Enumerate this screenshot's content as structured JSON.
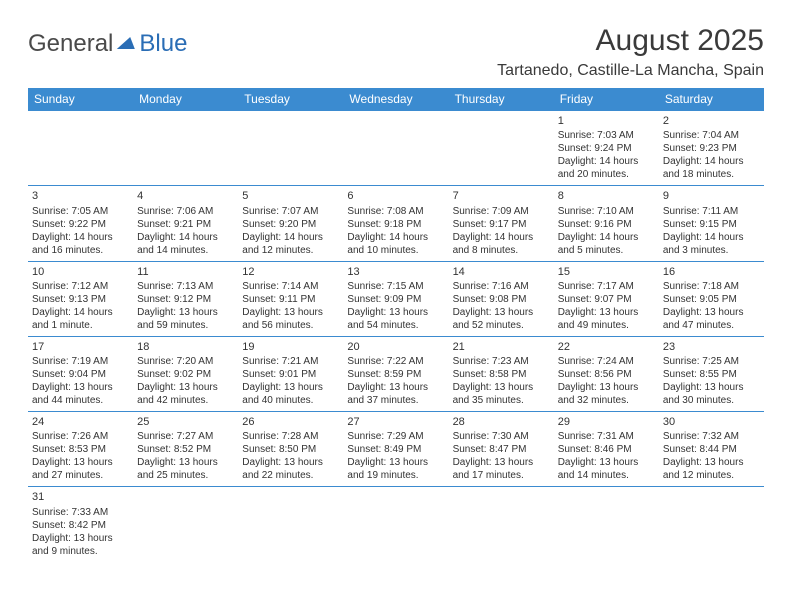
{
  "logo": {
    "general": "General",
    "blue": "Blue"
  },
  "title": "August 2025",
  "location": "Tartanedo, Castille-La Mancha, Spain",
  "headers": [
    "Sunday",
    "Monday",
    "Tuesday",
    "Wednesday",
    "Thursday",
    "Friday",
    "Saturday"
  ],
  "colors": {
    "header_bg": "#3b8bd0",
    "header_fg": "#ffffff",
    "brand_blue": "#2a6db5",
    "text": "#333333",
    "rule": "#3b8bd0"
  },
  "weeks": [
    [
      null,
      null,
      null,
      null,
      null,
      {
        "n": "1",
        "sr": "Sunrise: 7:03 AM",
        "ss": "Sunset: 9:24 PM",
        "d1": "Daylight: 14 hours",
        "d2": "and 20 minutes."
      },
      {
        "n": "2",
        "sr": "Sunrise: 7:04 AM",
        "ss": "Sunset: 9:23 PM",
        "d1": "Daylight: 14 hours",
        "d2": "and 18 minutes."
      }
    ],
    [
      {
        "n": "3",
        "sr": "Sunrise: 7:05 AM",
        "ss": "Sunset: 9:22 PM",
        "d1": "Daylight: 14 hours",
        "d2": "and 16 minutes."
      },
      {
        "n": "4",
        "sr": "Sunrise: 7:06 AM",
        "ss": "Sunset: 9:21 PM",
        "d1": "Daylight: 14 hours",
        "d2": "and 14 minutes."
      },
      {
        "n": "5",
        "sr": "Sunrise: 7:07 AM",
        "ss": "Sunset: 9:20 PM",
        "d1": "Daylight: 14 hours",
        "d2": "and 12 minutes."
      },
      {
        "n": "6",
        "sr": "Sunrise: 7:08 AM",
        "ss": "Sunset: 9:18 PM",
        "d1": "Daylight: 14 hours",
        "d2": "and 10 minutes."
      },
      {
        "n": "7",
        "sr": "Sunrise: 7:09 AM",
        "ss": "Sunset: 9:17 PM",
        "d1": "Daylight: 14 hours",
        "d2": "and 8 minutes."
      },
      {
        "n": "8",
        "sr": "Sunrise: 7:10 AM",
        "ss": "Sunset: 9:16 PM",
        "d1": "Daylight: 14 hours",
        "d2": "and 5 minutes."
      },
      {
        "n": "9",
        "sr": "Sunrise: 7:11 AM",
        "ss": "Sunset: 9:15 PM",
        "d1": "Daylight: 14 hours",
        "d2": "and 3 minutes."
      }
    ],
    [
      {
        "n": "10",
        "sr": "Sunrise: 7:12 AM",
        "ss": "Sunset: 9:13 PM",
        "d1": "Daylight: 14 hours",
        "d2": "and 1 minute."
      },
      {
        "n": "11",
        "sr": "Sunrise: 7:13 AM",
        "ss": "Sunset: 9:12 PM",
        "d1": "Daylight: 13 hours",
        "d2": "and 59 minutes."
      },
      {
        "n": "12",
        "sr": "Sunrise: 7:14 AM",
        "ss": "Sunset: 9:11 PM",
        "d1": "Daylight: 13 hours",
        "d2": "and 56 minutes."
      },
      {
        "n": "13",
        "sr": "Sunrise: 7:15 AM",
        "ss": "Sunset: 9:09 PM",
        "d1": "Daylight: 13 hours",
        "d2": "and 54 minutes."
      },
      {
        "n": "14",
        "sr": "Sunrise: 7:16 AM",
        "ss": "Sunset: 9:08 PM",
        "d1": "Daylight: 13 hours",
        "d2": "and 52 minutes."
      },
      {
        "n": "15",
        "sr": "Sunrise: 7:17 AM",
        "ss": "Sunset: 9:07 PM",
        "d1": "Daylight: 13 hours",
        "d2": "and 49 minutes."
      },
      {
        "n": "16",
        "sr": "Sunrise: 7:18 AM",
        "ss": "Sunset: 9:05 PM",
        "d1": "Daylight: 13 hours",
        "d2": "and 47 minutes."
      }
    ],
    [
      {
        "n": "17",
        "sr": "Sunrise: 7:19 AM",
        "ss": "Sunset: 9:04 PM",
        "d1": "Daylight: 13 hours",
        "d2": "and 44 minutes."
      },
      {
        "n": "18",
        "sr": "Sunrise: 7:20 AM",
        "ss": "Sunset: 9:02 PM",
        "d1": "Daylight: 13 hours",
        "d2": "and 42 minutes."
      },
      {
        "n": "19",
        "sr": "Sunrise: 7:21 AM",
        "ss": "Sunset: 9:01 PM",
        "d1": "Daylight: 13 hours",
        "d2": "and 40 minutes."
      },
      {
        "n": "20",
        "sr": "Sunrise: 7:22 AM",
        "ss": "Sunset: 8:59 PM",
        "d1": "Daylight: 13 hours",
        "d2": "and 37 minutes."
      },
      {
        "n": "21",
        "sr": "Sunrise: 7:23 AM",
        "ss": "Sunset: 8:58 PM",
        "d1": "Daylight: 13 hours",
        "d2": "and 35 minutes."
      },
      {
        "n": "22",
        "sr": "Sunrise: 7:24 AM",
        "ss": "Sunset: 8:56 PM",
        "d1": "Daylight: 13 hours",
        "d2": "and 32 minutes."
      },
      {
        "n": "23",
        "sr": "Sunrise: 7:25 AM",
        "ss": "Sunset: 8:55 PM",
        "d1": "Daylight: 13 hours",
        "d2": "and 30 minutes."
      }
    ],
    [
      {
        "n": "24",
        "sr": "Sunrise: 7:26 AM",
        "ss": "Sunset: 8:53 PM",
        "d1": "Daylight: 13 hours",
        "d2": "and 27 minutes."
      },
      {
        "n": "25",
        "sr": "Sunrise: 7:27 AM",
        "ss": "Sunset: 8:52 PM",
        "d1": "Daylight: 13 hours",
        "d2": "and 25 minutes."
      },
      {
        "n": "26",
        "sr": "Sunrise: 7:28 AM",
        "ss": "Sunset: 8:50 PM",
        "d1": "Daylight: 13 hours",
        "d2": "and 22 minutes."
      },
      {
        "n": "27",
        "sr": "Sunrise: 7:29 AM",
        "ss": "Sunset: 8:49 PM",
        "d1": "Daylight: 13 hours",
        "d2": "and 19 minutes."
      },
      {
        "n": "28",
        "sr": "Sunrise: 7:30 AM",
        "ss": "Sunset: 8:47 PM",
        "d1": "Daylight: 13 hours",
        "d2": "and 17 minutes."
      },
      {
        "n": "29",
        "sr": "Sunrise: 7:31 AM",
        "ss": "Sunset: 8:46 PM",
        "d1": "Daylight: 13 hours",
        "d2": "and 14 minutes."
      },
      {
        "n": "30",
        "sr": "Sunrise: 7:32 AM",
        "ss": "Sunset: 8:44 PM",
        "d1": "Daylight: 13 hours",
        "d2": "and 12 minutes."
      }
    ],
    [
      {
        "n": "31",
        "sr": "Sunrise: 7:33 AM",
        "ss": "Sunset: 8:42 PM",
        "d1": "Daylight: 13 hours",
        "d2": "and 9 minutes."
      },
      null,
      null,
      null,
      null,
      null,
      null
    ]
  ]
}
